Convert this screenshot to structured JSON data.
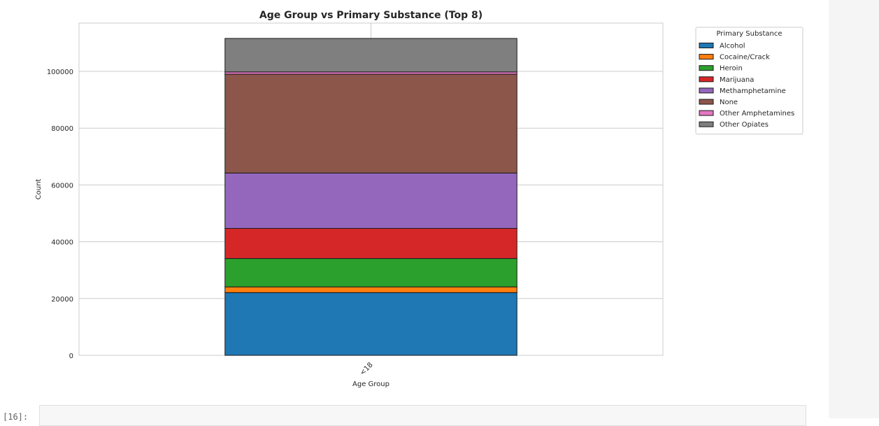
{
  "notebook": {
    "next_cell_prompt": "[16]:"
  },
  "colors": {
    "grid": "#cccccc",
    "bar_edge": "#1a1a1a",
    "text": "#262626"
  },
  "chart_data": {
    "type": "bar",
    "stacked": true,
    "title": "Age Group vs Primary Substance (Top 8)",
    "xlabel": "Age Group",
    "ylabel": "Count",
    "categories": [
      "<18"
    ],
    "ylim": [
      0,
      117000
    ],
    "yticks": [
      0,
      20000,
      40000,
      60000,
      80000,
      100000
    ],
    "grid": true,
    "legend": {
      "title": "Primary Substance",
      "placement": "outside-top-right"
    },
    "series": [
      {
        "name": "Alcohol",
        "color": "#1f77b4",
        "values": [
          22100
        ]
      },
      {
        "name": "Cocaine/Crack",
        "color": "#ff7f0e",
        "values": [
          2000
        ]
      },
      {
        "name": "Heroin",
        "color": "#2ca02c",
        "values": [
          10000
        ]
      },
      {
        "name": "Marijuana",
        "color": "#d62728",
        "values": [
          10600
        ]
      },
      {
        "name": "Methamphetamine",
        "color": "#9467bd",
        "values": [
          19500
        ]
      },
      {
        "name": "None",
        "color": "#8c564b",
        "values": [
          34800
        ]
      },
      {
        "name": "Other Amphetamines",
        "color": "#e377c2",
        "values": [
          800
        ]
      },
      {
        "name": "Other Opiates",
        "color": "#7f7f7f",
        "values": [
          11800
        ]
      }
    ]
  }
}
